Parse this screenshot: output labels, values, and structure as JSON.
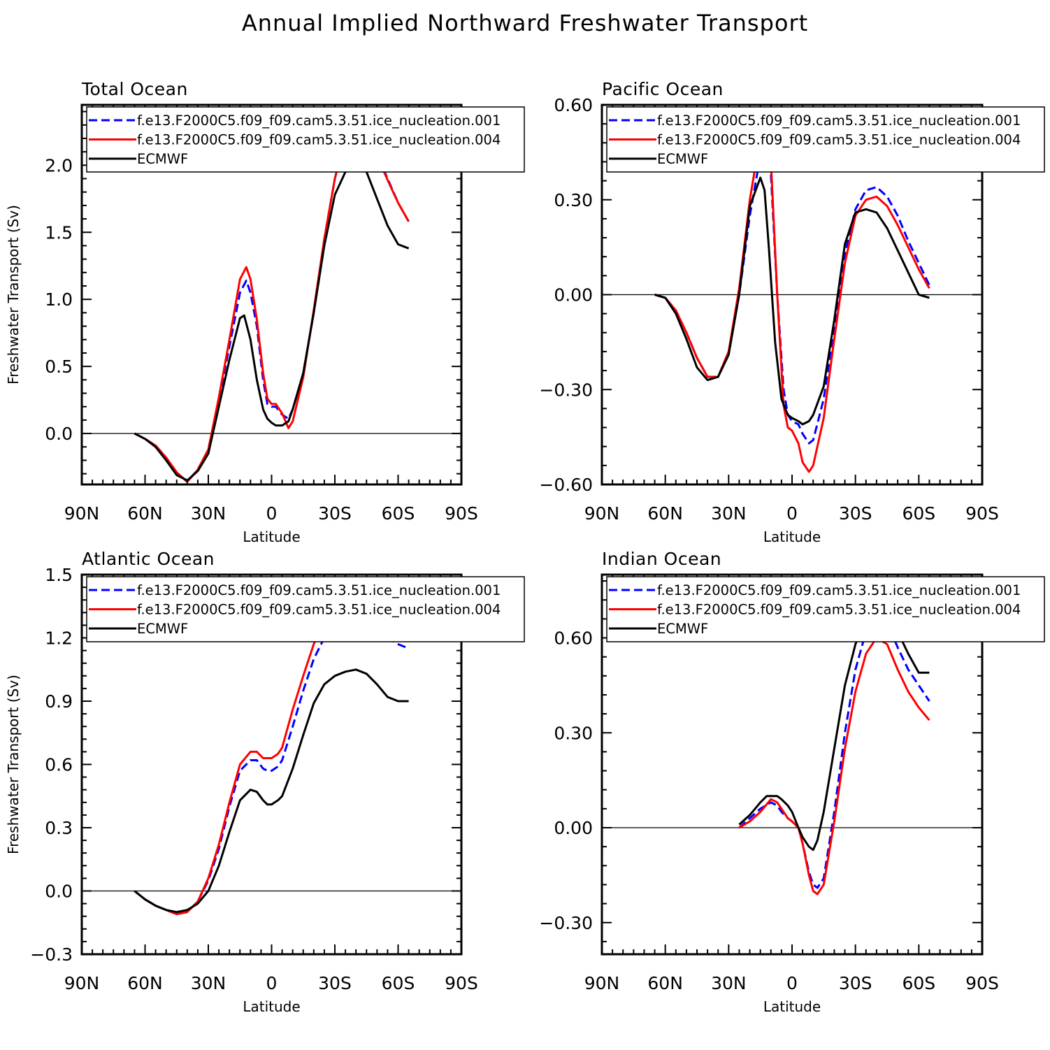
{
  "figure_title": "Annual Implied Northward Freshwater Transport",
  "y_axis_label": "Freshwater Transport (Sv)",
  "x_axis_label": "Latitude",
  "colors": {
    "series_001": "#0000ff",
    "series_004": "#ff0000",
    "ecmwf": "#000000"
  },
  "chart_data": [
    {
      "type": "line",
      "title": "Total Ocean",
      "xlabel": "Latitude",
      "ylabel": "Freshwater Transport (Sv)",
      "xlim": [
        -90,
        90
      ],
      "ylim": [
        -0.38,
        2.45
      ],
      "x_ticks": [
        -90,
        -60,
        -30,
        0,
        30,
        60,
        90
      ],
      "x_tick_labels": [
        "90N",
        "60N",
        "30N",
        "0",
        "30S",
        "60S",
        "90S"
      ],
      "y_ticks": [
        0.0,
        0.5,
        1.0,
        1.5,
        2.0
      ],
      "y_tick_labels": [
        "0.0",
        "0.5",
        "1.0",
        "1.5",
        "2.0"
      ],
      "x_note": "x values in degrees latitude; negative = N, positive = S",
      "series": [
        {
          "name": "f.e13.F2000C5.f09_f09.cam5.3.51.ice_nucleation.001",
          "style": "dashed",
          "x": [
            -65,
            -60,
            -55,
            -50,
            -45,
            -40,
            -35,
            -30,
            -25,
            -20,
            -15,
            -12,
            -10,
            -7,
            -4,
            -2,
            0,
            2,
            5,
            8,
            10,
            15,
            20,
            25,
            30,
            35,
            40,
            45,
            50,
            55,
            60,
            65
          ],
          "y": [
            0,
            -0.04,
            -0.09,
            -0.18,
            -0.29,
            -0.36,
            -0.27,
            -0.12,
            0.25,
            0.65,
            1.05,
            1.14,
            1.05,
            0.8,
            0.4,
            0.22,
            0.2,
            0.2,
            0.14,
            0.11,
            0.18,
            0.45,
            0.9,
            1.45,
            1.9,
            2.2,
            2.35,
            2.25,
            2.08,
            1.9,
            1.72,
            1.58
          ]
        },
        {
          "name": "f.e13.F2000C5.f09_f09.cam5.3.51.ice_nucleation.004",
          "style": "solid",
          "x": [
            -65,
            -60,
            -55,
            -50,
            -45,
            -40,
            -35,
            -30,
            -25,
            -20,
            -15,
            -12,
            -10,
            -7,
            -4,
            -2,
            0,
            2,
            5,
            8,
            10,
            15,
            20,
            25,
            30,
            35,
            40,
            45,
            50,
            55,
            60,
            65
          ],
          "y": [
            0,
            -0.04,
            -0.09,
            -0.18,
            -0.29,
            -0.36,
            -0.27,
            -0.12,
            0.27,
            0.7,
            1.15,
            1.24,
            1.15,
            0.85,
            0.45,
            0.26,
            0.22,
            0.22,
            0.15,
            0.04,
            0.09,
            0.42,
            0.92,
            1.45,
            1.9,
            2.2,
            2.33,
            2.24,
            2.07,
            1.89,
            1.72,
            1.58
          ]
        },
        {
          "name": "ECMWF",
          "style": "solid",
          "x": [
            -65,
            -60,
            -55,
            -50,
            -45,
            -40,
            -35,
            -30,
            -25,
            -20,
            -15,
            -13,
            -10,
            -7,
            -4,
            -2,
            0,
            2,
            5,
            8,
            10,
            15,
            20,
            25,
            30,
            35,
            40,
            45,
            50,
            55,
            60,
            65
          ],
          "y": [
            0,
            -0.04,
            -0.1,
            -0.2,
            -0.31,
            -0.35,
            -0.28,
            -0.15,
            0.2,
            0.55,
            0.86,
            0.88,
            0.7,
            0.4,
            0.18,
            0.11,
            0.08,
            0.06,
            0.06,
            0.09,
            0.18,
            0.45,
            0.9,
            1.4,
            1.78,
            1.95,
            2.01,
            1.95,
            1.75,
            1.55,
            1.41,
            1.38
          ]
        }
      ]
    },
    {
      "type": "line",
      "title": "Pacific Ocean",
      "xlabel": "Latitude",
      "ylabel": "",
      "xlim": [
        -90,
        90
      ],
      "ylim": [
        -0.6,
        0.6
      ],
      "x_ticks": [
        -90,
        -60,
        -30,
        0,
        30,
        60,
        90
      ],
      "x_tick_labels": [
        "90N",
        "60N",
        "30N",
        "0",
        "30S",
        "60S",
        "90S"
      ],
      "y_ticks": [
        -0.6,
        -0.3,
        0.0,
        0.3,
        0.6
      ],
      "y_tick_labels": [
        "−0.60",
        "−0.30",
        "0.00",
        "0.30",
        "0.60"
      ],
      "x_note": "x values in degrees latitude; negative = N, positive = S",
      "series": [
        {
          "name": "f.e13.F2000C5.f09_f09.cam5.3.51.ice_nucleation.001",
          "style": "dashed",
          "x": [
            -65,
            -60,
            -55,
            -50,
            -45,
            -40,
            -35,
            -30,
            -25,
            -20,
            -15,
            -13,
            -10,
            -7,
            -4,
            -2,
            0,
            3,
            5,
            8,
            10,
            15,
            20,
            25,
            30,
            35,
            40,
            45,
            50,
            55,
            60,
            65
          ],
          "y": [
            0,
            -0.01,
            -0.05,
            -0.12,
            -0.2,
            -0.26,
            -0.26,
            -0.18,
            0.0,
            0.25,
            0.44,
            0.47,
            0.38,
            0.0,
            -0.3,
            -0.38,
            -0.4,
            -0.41,
            -0.44,
            -0.47,
            -0.46,
            -0.33,
            -0.1,
            0.13,
            0.27,
            0.33,
            0.34,
            0.31,
            0.25,
            0.17,
            0.1,
            0.03
          ]
        },
        {
          "name": "f.e13.F2000C5.f09_f09.cam5.3.51.ice_nucleation.004",
          "style": "solid",
          "x": [
            -65,
            -60,
            -55,
            -50,
            -45,
            -40,
            -35,
            -30,
            -25,
            -20,
            -15,
            -13,
            -10,
            -7,
            -4,
            -2,
            0,
            3,
            5,
            8,
            10,
            15,
            20,
            25,
            30,
            35,
            40,
            45,
            50,
            55,
            60,
            65
          ],
          "y": [
            0,
            -0.01,
            -0.05,
            -0.12,
            -0.2,
            -0.26,
            -0.26,
            -0.18,
            0.02,
            0.3,
            0.5,
            0.53,
            0.42,
            0.0,
            -0.35,
            -0.42,
            -0.43,
            -0.47,
            -0.53,
            -0.56,
            -0.54,
            -0.39,
            -0.14,
            0.1,
            0.25,
            0.3,
            0.31,
            0.28,
            0.22,
            0.15,
            0.08,
            0.02
          ]
        },
        {
          "name": "ECMWF",
          "style": "solid",
          "x": [
            -65,
            -60,
            -55,
            -50,
            -45,
            -40,
            -35,
            -30,
            -25,
            -20,
            -15,
            -13,
            -11,
            -8,
            -5,
            -2,
            0,
            3,
            5,
            8,
            10,
            15,
            20,
            25,
            30,
            35,
            40,
            45,
            50,
            55,
            60,
            65
          ],
          "y": [
            0,
            -0.01,
            -0.06,
            -0.14,
            -0.23,
            -0.27,
            -0.26,
            -0.19,
            0.0,
            0.28,
            0.37,
            0.33,
            0.15,
            -0.15,
            -0.33,
            -0.38,
            -0.39,
            -0.4,
            -0.41,
            -0.4,
            -0.38,
            -0.29,
            -0.08,
            0.16,
            0.26,
            0.27,
            0.26,
            0.21,
            0.14,
            0.07,
            0.0,
            -0.01
          ]
        }
      ]
    },
    {
      "type": "line",
      "title": "Atlantic Ocean",
      "xlabel": "Latitude",
      "ylabel": "Freshwater Transport (Sv)",
      "xlim": [
        -90,
        90
      ],
      "ylim": [
        -0.3,
        1.5
      ],
      "x_ticks": [
        -90,
        -60,
        -30,
        0,
        30,
        60,
        90
      ],
      "x_tick_labels": [
        "90N",
        "60N",
        "30N",
        "0",
        "30S",
        "60S",
        "90S"
      ],
      "y_ticks": [
        -0.3,
        0.0,
        0.3,
        0.6,
        0.9,
        1.2,
        1.5
      ],
      "y_tick_labels": [
        "−0.3",
        "0.0",
        "0.3",
        "0.6",
        "0.9",
        "1.2",
        "1.5"
      ],
      "x_note": "x values in degrees latitude; negative = N, positive = S",
      "series": [
        {
          "name": "f.e13.F2000C5.f09_f09.cam5.3.51.ice_nucleation.001",
          "style": "dashed",
          "x": [
            -65,
            -60,
            -55,
            -50,
            -45,
            -40,
            -35,
            -30,
            -25,
            -20,
            -15,
            -10,
            -7,
            -4,
            -2,
            0,
            3,
            5,
            10,
            15,
            20,
            25,
            30,
            35,
            40,
            45,
            50,
            55,
            60,
            65
          ],
          "y": [
            0,
            -0.04,
            -0.07,
            -0.09,
            -0.11,
            -0.1,
            -0.05,
            0.05,
            0.2,
            0.4,
            0.57,
            0.62,
            0.62,
            0.58,
            0.57,
            0.57,
            0.59,
            0.62,
            0.78,
            0.95,
            1.1,
            1.2,
            1.28,
            1.33,
            1.36,
            1.33,
            1.27,
            1.2,
            1.17,
            1.15
          ]
        },
        {
          "name": "f.e13.F2000C5.f09_f09.cam5.3.51.ice_nucleation.004",
          "style": "solid",
          "x": [
            -65,
            -60,
            -55,
            -50,
            -45,
            -40,
            -35,
            -30,
            -25,
            -20,
            -15,
            -10,
            -7,
            -4,
            -2,
            0,
            3,
            5,
            10,
            15,
            20,
            25,
            30,
            35,
            40,
            45,
            50,
            55,
            60,
            65
          ],
          "y": [
            0,
            -0.04,
            -0.07,
            -0.09,
            -0.11,
            -0.1,
            -0.05,
            0.06,
            0.22,
            0.42,
            0.6,
            0.66,
            0.66,
            0.63,
            0.63,
            0.63,
            0.65,
            0.68,
            0.86,
            1.02,
            1.17,
            1.28,
            1.35,
            1.41,
            1.44,
            1.41,
            1.35,
            1.28,
            1.25,
            1.24
          ]
        },
        {
          "name": "ECMWF",
          "style": "solid",
          "x": [
            -65,
            -60,
            -55,
            -50,
            -45,
            -40,
            -35,
            -30,
            -25,
            -20,
            -15,
            -10,
            -7,
            -4,
            -2,
            0,
            3,
            5,
            10,
            15,
            20,
            25,
            30,
            35,
            40,
            45,
            50,
            55,
            60,
            65
          ],
          "y": [
            0,
            -0.04,
            -0.07,
            -0.09,
            -0.1,
            -0.09,
            -0.06,
            0.0,
            0.12,
            0.28,
            0.43,
            0.48,
            0.47,
            0.43,
            0.41,
            0.41,
            0.43,
            0.45,
            0.58,
            0.74,
            0.89,
            0.98,
            1.02,
            1.04,
            1.05,
            1.03,
            0.98,
            0.92,
            0.9,
            0.9
          ]
        }
      ]
    },
    {
      "type": "line",
      "title": "Indian Ocean",
      "xlabel": "Latitude",
      "ylabel": "",
      "xlim": [
        -90,
        90
      ],
      "ylim": [
        -0.4,
        0.8
      ],
      "x_ticks": [
        -90,
        -60,
        -30,
        0,
        30,
        60,
        90
      ],
      "x_tick_labels": [
        "90N",
        "60N",
        "30N",
        "0",
        "30S",
        "60S",
        "90S"
      ],
      "y_ticks": [
        -0.3,
        0.0,
        0.3,
        0.6
      ],
      "y_tick_labels": [
        "−0.30",
        "0.00",
        "0.30",
        "0.60"
      ],
      "x_note": "x values in degrees latitude; negative = N, positive = S",
      "series": [
        {
          "name": "f.e13.F2000C5.f09_f09.cam5.3.51.ice_nucleation.001",
          "style": "dashed",
          "x": [
            -25,
            -20,
            -15,
            -10,
            -7,
            -5,
            -2,
            0,
            3,
            5,
            8,
            10,
            12,
            15,
            20,
            25,
            30,
            35,
            40,
            45,
            50,
            55,
            60,
            65
          ],
          "y": [
            0.0,
            0.03,
            0.06,
            0.08,
            0.07,
            0.05,
            0.03,
            0.02,
            0.0,
            -0.05,
            -0.14,
            -0.18,
            -0.19,
            -0.16,
            0.05,
            0.3,
            0.5,
            0.62,
            0.66,
            0.65,
            0.57,
            0.5,
            0.45,
            0.4
          ]
        },
        {
          "name": "f.e13.F2000C5.f09_f09.cam5.3.51.ice_nucleation.004",
          "style": "solid",
          "x": [
            -25,
            -20,
            -15,
            -10,
            -7,
            -5,
            -2,
            0,
            3,
            5,
            8,
            10,
            12,
            15,
            20,
            25,
            30,
            35,
            40,
            45,
            50,
            55,
            60,
            65
          ],
          "y": [
            0.0,
            0.02,
            0.05,
            0.09,
            0.08,
            0.06,
            0.03,
            0.02,
            0.0,
            -0.05,
            -0.15,
            -0.2,
            -0.21,
            -0.18,
            0.02,
            0.25,
            0.43,
            0.55,
            0.6,
            0.58,
            0.5,
            0.43,
            0.38,
            0.34
          ]
        },
        {
          "name": "ECMWF",
          "style": "solid",
          "x": [
            -25,
            -20,
            -15,
            -12,
            -10,
            -7,
            -5,
            -2,
            0,
            3,
            5,
            8,
            10,
            12,
            15,
            20,
            25,
            30,
            35,
            40,
            45,
            50,
            55,
            60,
            65
          ],
          "y": [
            0.01,
            0.04,
            0.08,
            0.1,
            0.1,
            0.1,
            0.09,
            0.07,
            0.05,
            0.0,
            -0.03,
            -0.06,
            -0.07,
            -0.04,
            0.05,
            0.25,
            0.45,
            0.58,
            0.66,
            0.7,
            0.69,
            0.62,
            0.55,
            0.49,
            0.49
          ]
        }
      ]
    }
  ]
}
